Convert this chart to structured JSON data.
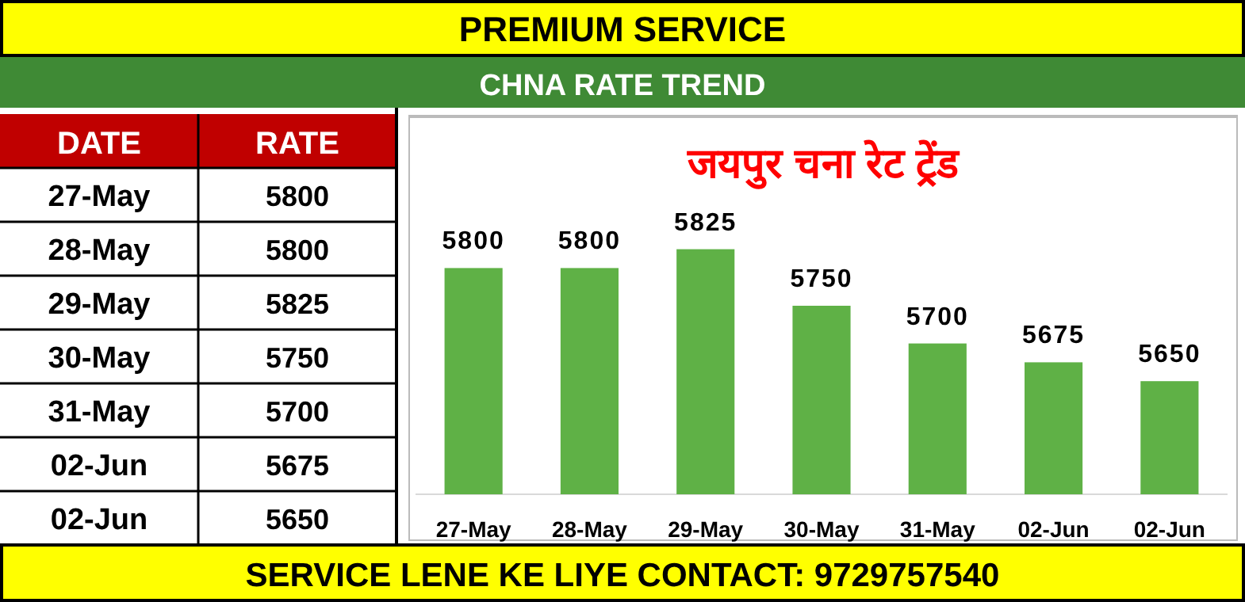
{
  "chart_data": [
    {
      "type": "other",
      "xlabel": "DATE",
      "ylabel": "RATE",
      "categories": [
        "27-May",
        "28-May",
        "29-May",
        "30-May",
        "31-May",
        "02-Jun",
        "02-Jun"
      ],
      "values": [
        5800,
        5800,
        5825,
        5750,
        5700,
        5675,
        5650
      ],
      "data_labels": true
    },
    {
      "type": "bar",
      "title": "जयपुर चना रेट ट्रेंड",
      "subtitle": "CHNA RATE TREND",
      "categories": [
        "27-May",
        "28-May",
        "29-May",
        "30-May",
        "31-May",
        "02-Jun",
        "02-Jun"
      ],
      "values": [
        5800,
        5800,
        5825,
        5750,
        5700,
        5675,
        5650
      ],
      "ylim": [
        5500,
        6000
      ],
      "tick_labels": "x",
      "color": "#5fb146",
      "data_labels": true,
      "annotations": [
        "PREMIUM SERVICE",
        "SERVICE LENE KE LIYE CONTACT: 9729757540"
      ]
    }
  ]
}
